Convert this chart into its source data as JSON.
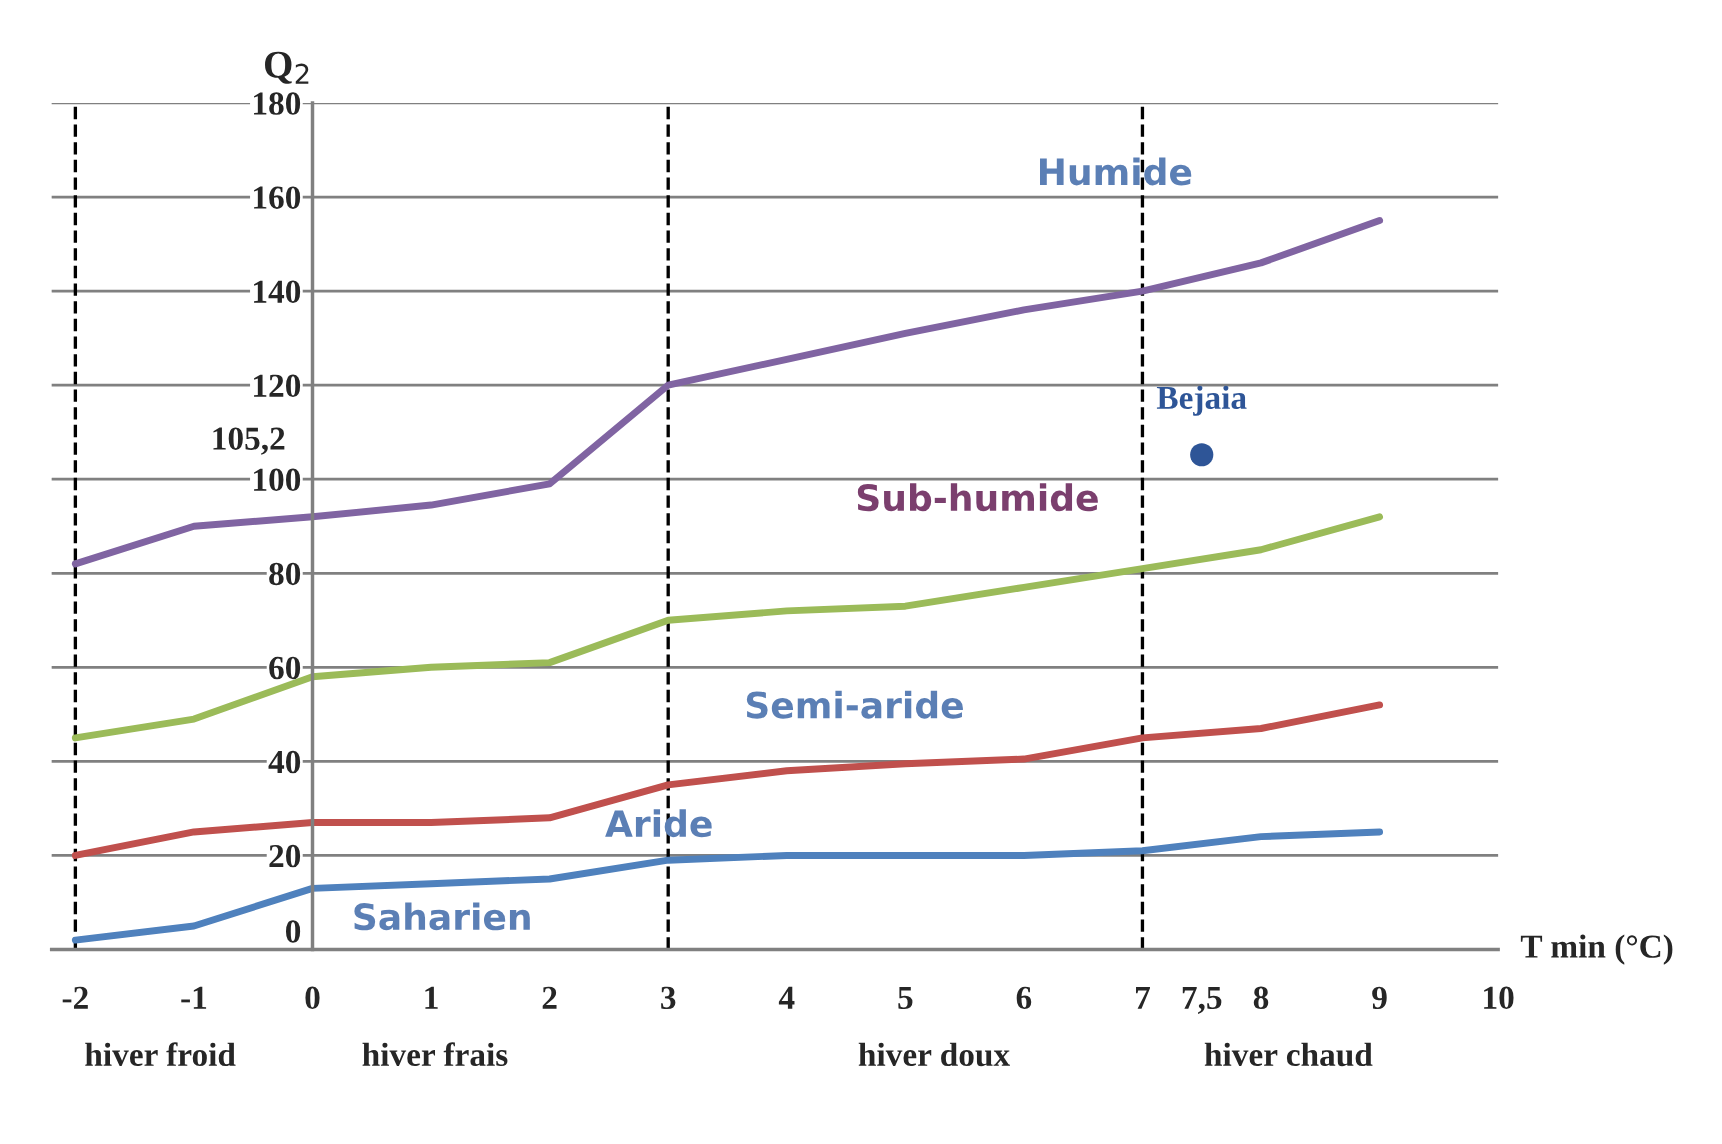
{
  "chart_data": {
    "type": "line",
    "xlabel": "T min (°C)",
    "ylabel": "Q$_{2}$",
    "x": [
      -2,
      -1,
      0,
      1,
      2,
      3,
      4,
      5,
      6,
      7,
      8,
      9
    ],
    "series": [
      {
        "color": "#8064a2",
        "values": [
          82,
          90,
          92,
          94.5,
          99,
          120,
          125.5,
          131,
          136,
          140,
          146,
          155
        ]
      },
      {
        "color": "#9bbb59",
        "values": [
          45,
          49,
          58,
          60,
          61,
          70,
          72,
          73,
          77,
          81,
          85,
          92
        ]
      },
      {
        "color": "#c0504d",
        "values": [
          20,
          25,
          27,
          27,
          28,
          35,
          38,
          39.5,
          40.5,
          45,
          47,
          52
        ]
      },
      {
        "color": "#4f81bd",
        "values": [
          2,
          5,
          13,
          14,
          15,
          19,
          20,
          20,
          20,
          21,
          24,
          25
        ]
      },
      {
        "type": "scatter",
        "name": "Bejaia",
        "color": "#2e5597",
        "x": [
          7.5
        ],
        "values": [
          105.2
        ]
      }
    ],
    "xlim": [
      -2.2,
      10
    ],
    "ylim": [
      0,
      180
    ],
    "xticks": [
      -2,
      -1,
      0,
      1,
      2,
      3,
      4,
      5,
      6,
      7,
      {
        "value": 7.5,
        "label": "7,5"
      },
      8,
      9,
      10
    ],
    "yticks": [
      0,
      20,
      40,
      60,
      80,
      100,
      120,
      140,
      160,
      180
    ],
    "grid": "y",
    "line_style": "solid",
    "legend": false,
    "ref_lines": [
      {
        "axis": "x",
        "value": -2,
        "line_style": "dashed",
        "color": "#000000"
      },
      {
        "axis": "x",
        "value": 3,
        "line_style": "dashed",
        "color": "#000000"
      },
      {
        "axis": "x",
        "value": 7,
        "line_style": "dashed",
        "color": "#000000"
      }
    ],
    "annotations": [
      "Humide",
      "Sub-humide",
      "Semi-aride",
      "Aride",
      "Saharien",
      "105,2",
      "hiver froid",
      "hiver frais",
      "hiver doux",
      "hiver chaud"
    ]
  }
}
